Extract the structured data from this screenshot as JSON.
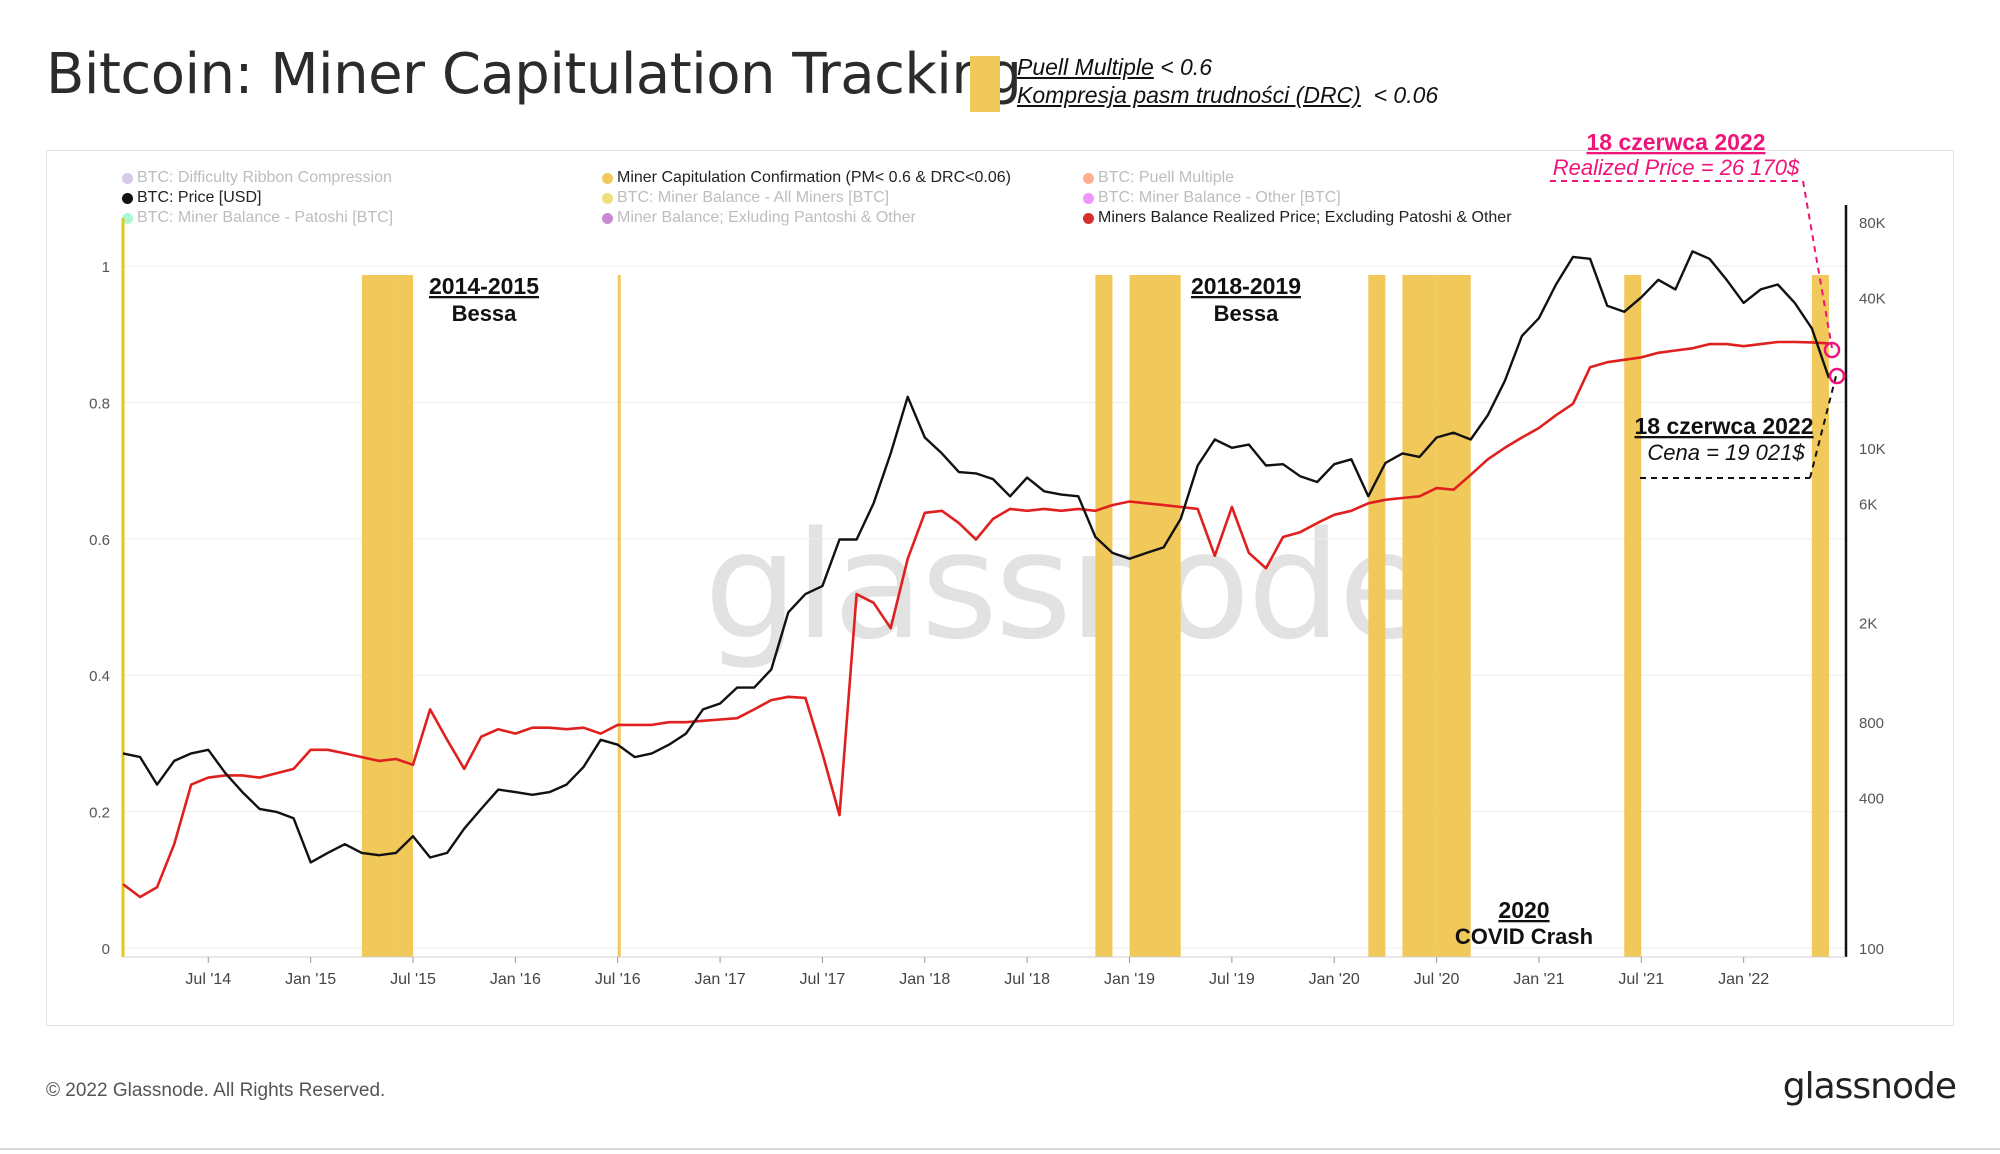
{
  "title": "Bitcoin: Miner Capitulation Tracking",
  "conditions": {
    "line1_name": "Puell Multiple",
    "line1_threshold": "< 0.6",
    "line2_name": "Kompresja pasm trudności (DRC)",
    "line2_threshold": "< 0.06"
  },
  "legend": [
    {
      "label": "BTC: Difficulty Ribbon Compression",
      "color": "#b39ddb",
      "active": false
    },
    {
      "label": "Miner Capitulation Confirmation (PM< 0.6 & DRC<0.06)",
      "color": "#f1c85a",
      "active": true
    },
    {
      "label": "BTC: Puell Multiple",
      "color": "#ff6d3a",
      "active": false
    },
    {
      "label": "BTC: Price [USD]",
      "color": "#111111",
      "active": true
    },
    {
      "label": "BTC: Miner Balance - All Miners [BTC]",
      "color": "#e0c516",
      "active": false
    },
    {
      "label": "BTC: Miner Balance - Other [BTC]",
      "color": "#e040fb",
      "active": false
    },
    {
      "label": "BTC: Miner Balance - Patoshi [BTC]",
      "color": "#69f0ae",
      "active": false
    },
    {
      "label": "Miner Balance; Exluding Pantoshi & Other",
      "color": "#9c27b0",
      "active": false
    },
    {
      "label": "Miners Balance Realized Price; Excluding Patoshi & Other",
      "color": "#d32f2f",
      "active": true
    }
  ],
  "watermark": "glassnode",
  "annotations": {
    "bear1_year": "2014-2015",
    "bear1_label": "Bessa",
    "bear2_year": "2018-2019",
    "bear2_label": "Bessa",
    "covid_year": "2020",
    "covid_label": "COVID Crash",
    "realized_date": "18 czerwca 2022",
    "realized_value": "Realized Price = 26 170$",
    "price_date": "18 czerwca 2022",
    "price_value": "Cena = 19 021$"
  },
  "colors": {
    "price": "#111111",
    "realized_price": "#e0201f",
    "capitulation": "#f1c85a",
    "highlight": "#f0147a"
  },
  "footer": {
    "copyright": "© 2022 Glassnode. All Rights Reserved.",
    "logo": "glassnode"
  },
  "chart_data": {
    "type": "line",
    "x_ticks": [
      "Jul '14",
      "Jan '15",
      "Jul '15",
      "Jan '16",
      "Jul '16",
      "Jan '17",
      "Jul '17",
      "Jan '18",
      "Jul '18",
      "Jan '19",
      "Jul '19",
      "Jan '20",
      "Jul '20",
      "Jan '21",
      "Jul '21",
      "Jan '22"
    ],
    "x_range": [
      "2014-02",
      "2022-06"
    ],
    "y_left": {
      "ticks": [
        "0",
        "0.2",
        "0.4",
        "0.6",
        "0.8",
        "1"
      ],
      "range": [
        0,
        1
      ]
    },
    "y_right": {
      "ticks": [
        "100",
        "400",
        "800",
        "2K",
        "6K",
        "10K",
        "40K",
        "80K"
      ],
      "scale": "log",
      "range": [
        100,
        80000
      ]
    },
    "capitulation_bands": [
      [
        "2015-04",
        "2015-06"
      ],
      [
        "2015-06",
        "2015-07"
      ],
      [
        "2016-07",
        "2016-07"
      ],
      [
        "2018-11",
        "2018-12"
      ],
      [
        "2019-01",
        "2019-04"
      ],
      [
        "2020-03",
        "2020-04"
      ],
      [
        "2020-05",
        "2020-06"
      ],
      [
        "2020-06",
        "2020-07"
      ],
      [
        "2020-07",
        "2020-09"
      ],
      [
        "2021-06",
        "2021-07"
      ],
      [
        "2022-05",
        "2022-06"
      ]
    ],
    "series": [
      {
        "name": "BTC: Price [USD]",
        "axis": "right",
        "x": [
          "2014-02",
          "2014-03",
          "2014-04",
          "2014-05",
          "2014-06",
          "2014-07",
          "2014-08",
          "2014-09",
          "2014-10",
          "2014-11",
          "2014-12",
          "2015-01",
          "2015-02",
          "2015-03",
          "2015-04",
          "2015-05",
          "2015-06",
          "2015-07",
          "2015-08",
          "2015-09",
          "2015-10",
          "2015-11",
          "2015-12",
          "2016-01",
          "2016-02",
          "2016-03",
          "2016-04",
          "2016-05",
          "2016-06",
          "2016-07",
          "2016-08",
          "2016-09",
          "2016-10",
          "2016-11",
          "2016-12",
          "2017-01",
          "2017-02",
          "2017-03",
          "2017-04",
          "2017-05",
          "2017-06",
          "2017-07",
          "2017-08",
          "2017-09",
          "2017-10",
          "2017-11",
          "2017-12",
          "2018-01",
          "2018-02",
          "2018-03",
          "2018-04",
          "2018-05",
          "2018-06",
          "2018-07",
          "2018-08",
          "2018-09",
          "2018-10",
          "2018-11",
          "2018-12",
          "2019-01",
          "2019-02",
          "2019-03",
          "2019-04",
          "2019-05",
          "2019-06",
          "2019-07",
          "2019-08",
          "2019-09",
          "2019-10",
          "2019-11",
          "2019-12",
          "2020-01",
          "2020-02",
          "2020-03",
          "2020-04",
          "2020-05",
          "2020-06",
          "2020-07",
          "2020-08",
          "2020-09",
          "2020-10",
          "2020-11",
          "2020-12",
          "2021-01",
          "2021-02",
          "2021-03",
          "2021-04",
          "2021-05",
          "2021-06",
          "2021-07",
          "2021-08",
          "2021-09",
          "2021-10",
          "2021-11",
          "2021-12",
          "2022-01",
          "2022-02",
          "2022-03",
          "2022-04",
          "2022-05",
          "2022-06"
        ],
        "values": [
          600,
          580,
          450,
          560,
          600,
          620,
          500,
          420,
          360,
          350,
          330,
          220,
          240,
          260,
          240,
          235,
          240,
          280,
          230,
          240,
          300,
          360,
          430,
          420,
          410,
          420,
          450,
          530,
          680,
          650,
          580,
          600,
          650,
          720,
          900,
          950,
          1100,
          1100,
          1300,
          2200,
          2600,
          2800,
          4300,
          4300,
          6000,
          9500,
          16000,
          11000,
          9500,
          8000,
          7900,
          7500,
          6400,
          7600,
          6700,
          6500,
          6400,
          4400,
          3800,
          3600,
          3800,
          4000,
          5200,
          8500,
          10800,
          10000,
          10300,
          8500,
          8600,
          7700,
          7300,
          8600,
          9000,
          6400,
          8700,
          9500,
          9200,
          11000,
          11500,
          10800,
          13500,
          18500,
          28000,
          33000,
          45000,
          58000,
          57000,
          37000,
          35000,
          40000,
          47000,
          43000,
          61000,
          57000,
          47000,
          38000,
          43000,
          45000,
          38000,
          30000,
          19021
        ]
      },
      {
        "name": "Miners Balance Realized Price; Excluding Patoshi & Other",
        "axis": "right",
        "x": [
          "2014-02",
          "2014-03",
          "2014-04",
          "2014-05",
          "2014-06",
          "2014-07",
          "2014-08",
          "2014-09",
          "2014-10",
          "2014-11",
          "2014-12",
          "2015-01",
          "2015-02",
          "2015-03",
          "2015-04",
          "2015-05",
          "2015-06",
          "2015-07",
          "2015-08",
          "2015-09",
          "2015-10",
          "2015-11",
          "2015-12",
          "2016-01",
          "2016-02",
          "2016-03",
          "2016-04",
          "2016-05",
          "2016-06",
          "2016-07",
          "2016-08",
          "2016-09",
          "2016-10",
          "2016-11",
          "2016-12",
          "2017-01",
          "2017-02",
          "2017-03",
          "2017-04",
          "2017-05",
          "2017-06",
          "2017-07",
          "2017-08",
          "2017-09",
          "2017-10",
          "2017-11",
          "2017-12",
          "2018-01",
          "2018-02",
          "2018-03",
          "2018-04",
          "2018-05",
          "2018-06",
          "2018-07",
          "2018-08",
          "2018-09",
          "2018-10",
          "2018-11",
          "2018-12",
          "2019-01",
          "2019-02",
          "2019-03",
          "2019-04",
          "2019-05",
          "2019-06",
          "2019-07",
          "2019-08",
          "2019-09",
          "2019-10",
          "2019-11",
          "2019-12",
          "2020-01",
          "2020-02",
          "2020-03",
          "2020-04",
          "2020-05",
          "2020-06",
          "2020-07",
          "2020-08",
          "2020-09",
          "2020-10",
          "2020-11",
          "2020-12",
          "2021-01",
          "2021-02",
          "2021-03",
          "2021-04",
          "2021-05",
          "2021-06",
          "2021-07",
          "2021-08",
          "2021-09",
          "2021-10",
          "2021-11",
          "2021-12",
          "2022-01",
          "2022-02",
          "2022-03",
          "2022-04",
          "2022-05",
          "2022-06"
        ],
        "values": [
          180,
          160,
          175,
          260,
          450,
          480,
          490,
          490,
          480,
          500,
          520,
          620,
          620,
          600,
          580,
          560,
          570,
          540,
          900,
          680,
          520,
          700,
          750,
          720,
          760,
          760,
          750,
          760,
          720,
          780,
          780,
          780,
          800,
          800,
          810,
          820,
          830,
          900,
          980,
          1010,
          1000,
          600,
          340,
          2600,
          2400,
          1900,
          3600,
          5500,
          5600,
          5000,
          4300,
          5200,
          5700,
          5600,
          5700,
          5600,
          5700,
          5600,
          5900,
          6100,
          6000,
          5900,
          5800,
          5700,
          3700,
          5800,
          3800,
          3300,
          4400,
          4600,
          5000,
          5400,
          5600,
          6000,
          6200,
          6300,
          6400,
          6900,
          6800,
          7800,
          9000,
          10000,
          11000,
          12000,
          13500,
          15000,
          21000,
          22000,
          22500,
          23000,
          24000,
          24500,
          25000,
          26000,
          26000,
          25500,
          26000,
          26500,
          26500,
          26400,
          26170
        ]
      }
    ]
  }
}
